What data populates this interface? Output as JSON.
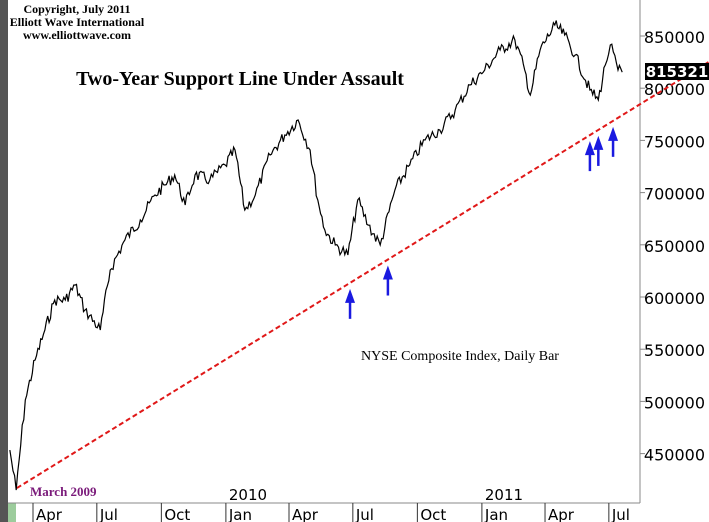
{
  "chart_data": {
    "type": "line",
    "title": "Two-Year Support Line Under Assault",
    "copyright": [
      "Copyright, July 2011",
      "Elliott Wave International",
      "www.elliottwave.com"
    ],
    "annotation": "NYSE Composite Index, Daily Bar",
    "start_label": "March 2009",
    "last_value_label": "815321",
    "colors": {
      "price": "#000000",
      "trendline": "#e01818",
      "arrows": "#1a1ae0",
      "start_label": "#7a1a7a",
      "last_value_bg": "#000000"
    },
    "y_axis": {
      "position": "right",
      "range": [
        410000,
        870000
      ],
      "ticks": [
        850000,
        800000,
        750000,
        700000,
        650000,
        600000,
        550000,
        500000,
        450000
      ],
      "tick_labels": [
        "850000",
        "800000",
        "750000",
        "700000",
        "650000",
        "600000",
        "550000",
        "500000",
        "450000"
      ]
    },
    "x_axis": {
      "ticks": [
        {
          "date": "2009-04-01",
          "label": "Apr"
        },
        {
          "date": "2009-07-01",
          "label": "Jul"
        },
        {
          "date": "2009-10-01",
          "label": "Oct"
        },
        {
          "date": "2010-01-01",
          "label": "Jan"
        },
        {
          "date": "2010-04-01",
          "label": "Apr"
        },
        {
          "date": "2010-07-01",
          "label": "Jul"
        },
        {
          "date": "2010-10-01",
          "label": "Oct"
        },
        {
          "date": "2011-01-01",
          "label": "Jan"
        },
        {
          "date": "2011-04-01",
          "label": "Apr"
        },
        {
          "date": "2011-07-01",
          "label": "Jul"
        }
      ],
      "years": [
        {
          "date": "2010-01-01",
          "label": "2010"
        },
        {
          "date": "2011-01-01",
          "label": "2011"
        }
      ]
    },
    "series": [
      {
        "points": [
          [
            "2009-02-27",
            453400
          ],
          [
            "2009-03-08",
            415000
          ],
          [
            "2009-03-21",
            501300
          ],
          [
            "2009-04-04",
            539600
          ],
          [
            "2009-04-18",
            568400
          ],
          [
            "2009-05-02",
            597100
          ],
          [
            "2009-05-17",
            597100
          ],
          [
            "2009-05-31",
            611500
          ],
          [
            "2009-06-14",
            587500
          ],
          [
            "2009-07-06",
            568400
          ],
          [
            "2009-07-20",
            625900
          ],
          [
            "2009-08-10",
            654600
          ],
          [
            "2009-09-01",
            673800
          ],
          [
            "2009-09-22",
            697700
          ],
          [
            "2009-10-06",
            707300
          ],
          [
            "2009-10-20",
            716900
          ],
          [
            "2009-11-04",
            688100
          ],
          [
            "2009-11-18",
            716900
          ],
          [
            "2009-12-09",
            712100
          ],
          [
            "2009-12-31",
            726400
          ],
          [
            "2010-01-14",
            740800
          ],
          [
            "2010-01-28",
            683300
          ],
          [
            "2010-02-12",
            697700
          ],
          [
            "2010-03-05",
            736000
          ],
          [
            "2010-03-26",
            755200
          ],
          [
            "2010-04-14",
            769500
          ],
          [
            "2010-05-01",
            740800
          ],
          [
            "2010-05-12",
            692900
          ],
          [
            "2010-05-22",
            664200
          ],
          [
            "2010-06-06",
            649800
          ],
          [
            "2010-06-24",
            640200
          ],
          [
            "2010-07-08",
            692900
          ],
          [
            "2010-07-23",
            668900
          ],
          [
            "2010-08-09",
            649800
          ],
          [
            "2010-08-30",
            702500
          ],
          [
            "2010-09-20",
            726400
          ],
          [
            "2010-10-12",
            750400
          ],
          [
            "2010-11-02",
            760000
          ],
          [
            "2010-11-24",
            779100
          ],
          [
            "2010-12-15",
            803100
          ],
          [
            "2011-01-05",
            817400
          ],
          [
            "2011-01-27",
            836600
          ],
          [
            "2011-02-17",
            846200
          ],
          [
            "2011-03-03",
            817400
          ],
          [
            "2011-03-11",
            793500
          ],
          [
            "2011-03-25",
            836600
          ],
          [
            "2011-04-15",
            860500
          ],
          [
            "2011-04-29",
            851000
          ],
          [
            "2011-05-14",
            831800
          ],
          [
            "2011-06-04",
            798300
          ],
          [
            "2011-06-16",
            788700
          ],
          [
            "2011-06-26",
            822200
          ],
          [
            "2011-07-03",
            841400
          ],
          [
            "2011-07-14",
            817400
          ],
          [
            "2011-07-20",
            815321
          ]
        ]
      }
    ],
    "trendline": [
      [
        "2009-03-09",
        417000
      ],
      [
        "2011-11-20",
        825000
      ]
    ],
    "arrows": [
      "2010-06-27",
      "2010-08-20",
      "2011-06-04",
      "2011-06-16",
      "2011-07-07"
    ],
    "grid": false
  }
}
